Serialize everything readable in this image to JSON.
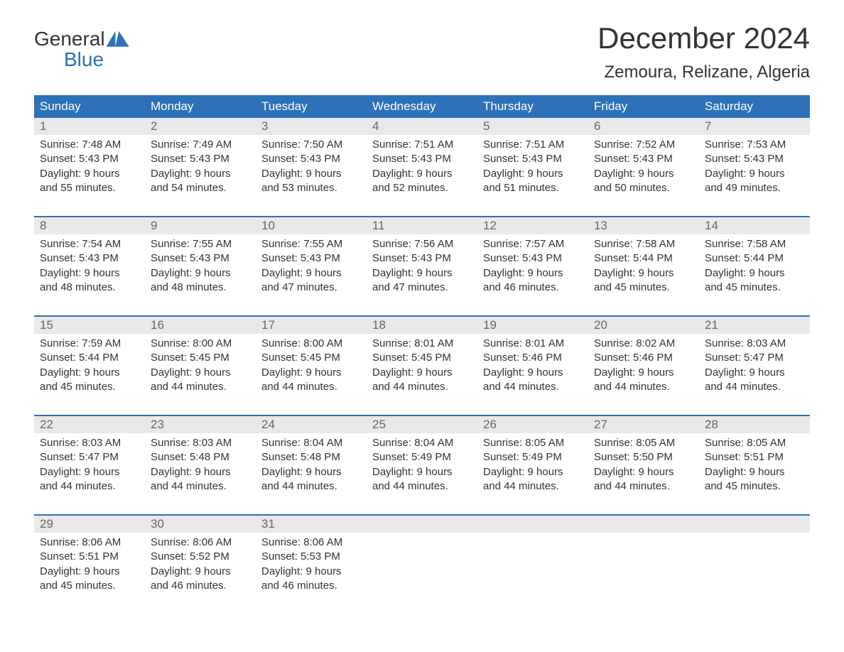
{
  "logo": {
    "line1": "General",
    "line2": "Blue"
  },
  "title": {
    "month": "December 2024",
    "location": "Zemoura, Relizane, Algeria"
  },
  "colors": {
    "header_bg": "#2d72b8",
    "header_text": "#ffffff",
    "daybar_bg": "#e9e9e9",
    "daynum_text": "#666666",
    "body_text": "#333333",
    "logo_blue": "#2d72b8",
    "background": "#ffffff"
  },
  "typography": {
    "month_title_fontsize": 42,
    "location_fontsize": 24,
    "weekday_fontsize": 17,
    "daynum_fontsize": 17,
    "body_fontsize": 15,
    "logo_fontsize": 28
  },
  "weekdays": [
    "Sunday",
    "Monday",
    "Tuesday",
    "Wednesday",
    "Thursday",
    "Friday",
    "Saturday"
  ],
  "weeks": [
    [
      {
        "n": "1",
        "sunrise": "Sunrise: 7:48 AM",
        "sunset": "Sunset: 5:43 PM",
        "d1": "Daylight: 9 hours",
        "d2": "and 55 minutes."
      },
      {
        "n": "2",
        "sunrise": "Sunrise: 7:49 AM",
        "sunset": "Sunset: 5:43 PM",
        "d1": "Daylight: 9 hours",
        "d2": "and 54 minutes."
      },
      {
        "n": "3",
        "sunrise": "Sunrise: 7:50 AM",
        "sunset": "Sunset: 5:43 PM",
        "d1": "Daylight: 9 hours",
        "d2": "and 53 minutes."
      },
      {
        "n": "4",
        "sunrise": "Sunrise: 7:51 AM",
        "sunset": "Sunset: 5:43 PM",
        "d1": "Daylight: 9 hours",
        "d2": "and 52 minutes."
      },
      {
        "n": "5",
        "sunrise": "Sunrise: 7:51 AM",
        "sunset": "Sunset: 5:43 PM",
        "d1": "Daylight: 9 hours",
        "d2": "and 51 minutes."
      },
      {
        "n": "6",
        "sunrise": "Sunrise: 7:52 AM",
        "sunset": "Sunset: 5:43 PM",
        "d1": "Daylight: 9 hours",
        "d2": "and 50 minutes."
      },
      {
        "n": "7",
        "sunrise": "Sunrise: 7:53 AM",
        "sunset": "Sunset: 5:43 PM",
        "d1": "Daylight: 9 hours",
        "d2": "and 49 minutes."
      }
    ],
    [
      {
        "n": "8",
        "sunrise": "Sunrise: 7:54 AM",
        "sunset": "Sunset: 5:43 PM",
        "d1": "Daylight: 9 hours",
        "d2": "and 48 minutes."
      },
      {
        "n": "9",
        "sunrise": "Sunrise: 7:55 AM",
        "sunset": "Sunset: 5:43 PM",
        "d1": "Daylight: 9 hours",
        "d2": "and 48 minutes."
      },
      {
        "n": "10",
        "sunrise": "Sunrise: 7:55 AM",
        "sunset": "Sunset: 5:43 PM",
        "d1": "Daylight: 9 hours",
        "d2": "and 47 minutes."
      },
      {
        "n": "11",
        "sunrise": "Sunrise: 7:56 AM",
        "sunset": "Sunset: 5:43 PM",
        "d1": "Daylight: 9 hours",
        "d2": "and 47 minutes."
      },
      {
        "n": "12",
        "sunrise": "Sunrise: 7:57 AM",
        "sunset": "Sunset: 5:43 PM",
        "d1": "Daylight: 9 hours",
        "d2": "and 46 minutes."
      },
      {
        "n": "13",
        "sunrise": "Sunrise: 7:58 AM",
        "sunset": "Sunset: 5:44 PM",
        "d1": "Daylight: 9 hours",
        "d2": "and 45 minutes."
      },
      {
        "n": "14",
        "sunrise": "Sunrise: 7:58 AM",
        "sunset": "Sunset: 5:44 PM",
        "d1": "Daylight: 9 hours",
        "d2": "and 45 minutes."
      }
    ],
    [
      {
        "n": "15",
        "sunrise": "Sunrise: 7:59 AM",
        "sunset": "Sunset: 5:44 PM",
        "d1": "Daylight: 9 hours",
        "d2": "and 45 minutes."
      },
      {
        "n": "16",
        "sunrise": "Sunrise: 8:00 AM",
        "sunset": "Sunset: 5:45 PM",
        "d1": "Daylight: 9 hours",
        "d2": "and 44 minutes."
      },
      {
        "n": "17",
        "sunrise": "Sunrise: 8:00 AM",
        "sunset": "Sunset: 5:45 PM",
        "d1": "Daylight: 9 hours",
        "d2": "and 44 minutes."
      },
      {
        "n": "18",
        "sunrise": "Sunrise: 8:01 AM",
        "sunset": "Sunset: 5:45 PM",
        "d1": "Daylight: 9 hours",
        "d2": "and 44 minutes."
      },
      {
        "n": "19",
        "sunrise": "Sunrise: 8:01 AM",
        "sunset": "Sunset: 5:46 PM",
        "d1": "Daylight: 9 hours",
        "d2": "and 44 minutes."
      },
      {
        "n": "20",
        "sunrise": "Sunrise: 8:02 AM",
        "sunset": "Sunset: 5:46 PM",
        "d1": "Daylight: 9 hours",
        "d2": "and 44 minutes."
      },
      {
        "n": "21",
        "sunrise": "Sunrise: 8:03 AM",
        "sunset": "Sunset: 5:47 PM",
        "d1": "Daylight: 9 hours",
        "d2": "and 44 minutes."
      }
    ],
    [
      {
        "n": "22",
        "sunrise": "Sunrise: 8:03 AM",
        "sunset": "Sunset: 5:47 PM",
        "d1": "Daylight: 9 hours",
        "d2": "and 44 minutes."
      },
      {
        "n": "23",
        "sunrise": "Sunrise: 8:03 AM",
        "sunset": "Sunset: 5:48 PM",
        "d1": "Daylight: 9 hours",
        "d2": "and 44 minutes."
      },
      {
        "n": "24",
        "sunrise": "Sunrise: 8:04 AM",
        "sunset": "Sunset: 5:48 PM",
        "d1": "Daylight: 9 hours",
        "d2": "and 44 minutes."
      },
      {
        "n": "25",
        "sunrise": "Sunrise: 8:04 AM",
        "sunset": "Sunset: 5:49 PM",
        "d1": "Daylight: 9 hours",
        "d2": "and 44 minutes."
      },
      {
        "n": "26",
        "sunrise": "Sunrise: 8:05 AM",
        "sunset": "Sunset: 5:49 PM",
        "d1": "Daylight: 9 hours",
        "d2": "and 44 minutes."
      },
      {
        "n": "27",
        "sunrise": "Sunrise: 8:05 AM",
        "sunset": "Sunset: 5:50 PM",
        "d1": "Daylight: 9 hours",
        "d2": "and 44 minutes."
      },
      {
        "n": "28",
        "sunrise": "Sunrise: 8:05 AM",
        "sunset": "Sunset: 5:51 PM",
        "d1": "Daylight: 9 hours",
        "d2": "and 45 minutes."
      }
    ],
    [
      {
        "n": "29",
        "sunrise": "Sunrise: 8:06 AM",
        "sunset": "Sunset: 5:51 PM",
        "d1": "Daylight: 9 hours",
        "d2": "and 45 minutes."
      },
      {
        "n": "30",
        "sunrise": "Sunrise: 8:06 AM",
        "sunset": "Sunset: 5:52 PM",
        "d1": "Daylight: 9 hours",
        "d2": "and 46 minutes."
      },
      {
        "n": "31",
        "sunrise": "Sunrise: 8:06 AM",
        "sunset": "Sunset: 5:53 PM",
        "d1": "Daylight: 9 hours",
        "d2": "and 46 minutes."
      },
      {
        "empty": true
      },
      {
        "empty": true
      },
      {
        "empty": true
      },
      {
        "empty": true
      }
    ]
  ]
}
